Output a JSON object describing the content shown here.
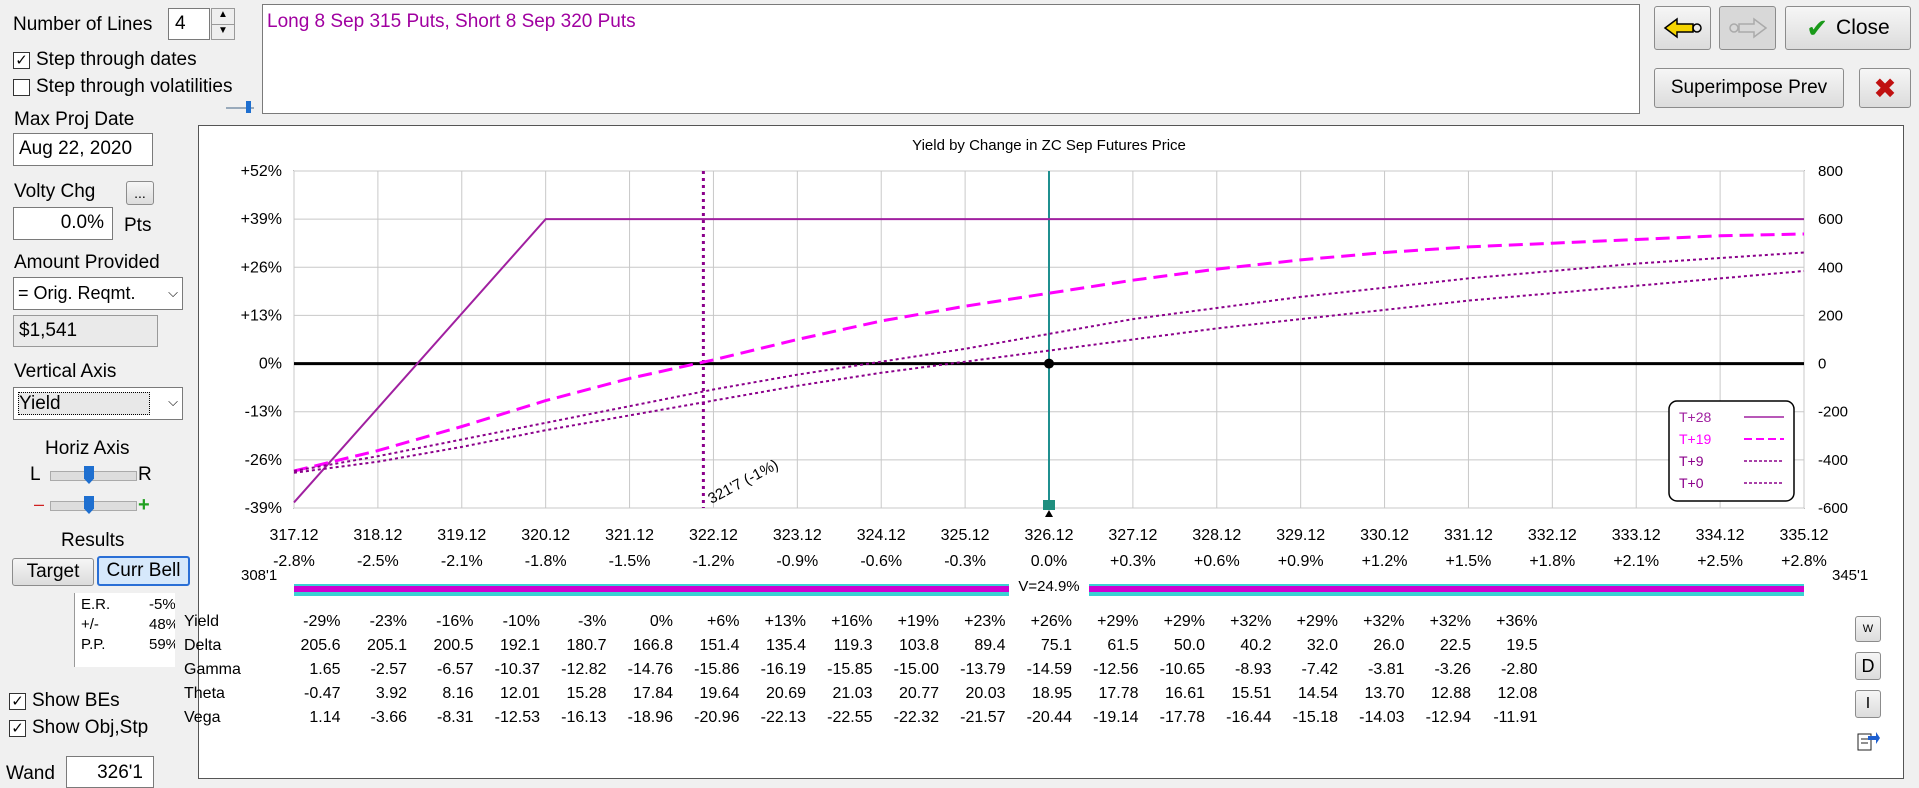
{
  "lines": {
    "label": "Number of Lines",
    "value": "4"
  },
  "step_dates": {
    "label": "Step through dates",
    "checked": true
  },
  "step_vols": {
    "label": "Step through volatilities",
    "checked": false
  },
  "max_proj": {
    "label": "Max Proj Date",
    "value": "Aug 22, 2020"
  },
  "volty": {
    "label": "Volty Chg",
    "value": "0.0%",
    "unit": "Pts",
    "ellipsis": "..."
  },
  "amount": {
    "label": "Amount Provided",
    "select": "= Orig. Reqmt.",
    "value": "$1,541"
  },
  "vaxis": {
    "label": "Vertical Axis",
    "select": "Yield"
  },
  "haxis": {
    "label": "Horiz Axis",
    "l": "L",
    "r": "R",
    "minus": "–",
    "plus": "+"
  },
  "results": {
    "label": "Results",
    "target": "Target",
    "currbell": "Curr Bell",
    "er_lbl": "E.R.",
    "er_val": "-5%",
    "pm_lbl": "+/-",
    "pm_val": "48%",
    "pp_lbl": "P.P.",
    "pp_val": "59%"
  },
  "show_bes": {
    "label": "Show BEs",
    "checked": true
  },
  "show_obj": {
    "label": "Show Obj,Stp",
    "checked": true
  },
  "wand": {
    "label": "Wand",
    "value": "326'1"
  },
  "description": "Long 8 Sep 315 Puts, Short 8 Sep 320 Puts",
  "buttons": {
    "close": "Close",
    "superimpose": "Superimpose Prev",
    "w": "W",
    "d": "D",
    "i": "I"
  },
  "chart_data": {
    "type": "line",
    "title": "Yield by Change in ZC Sep Futures Price",
    "x_ticks": [
      "317.12",
      "318.12",
      "319.12",
      "320.12",
      "321.12",
      "322.12",
      "323.12",
      "324.12",
      "325.12",
      "326.12",
      "327.12",
      "328.12",
      "329.12",
      "330.12",
      "331.12",
      "332.12",
      "333.12",
      "334.12",
      "335.12"
    ],
    "pct_ticks": [
      "-2.8%",
      "-2.5%",
      "-2.1%",
      "-1.8%",
      "-1.5%",
      "-1.2%",
      "-0.9%",
      "-0.6%",
      "-0.3%",
      "0.0%",
      "+0.3%",
      "+0.6%",
      "+0.9%",
      "+1.2%",
      "+1.5%",
      "+1.8%",
      "+2.1%",
      "+2.5%",
      "+2.8%"
    ],
    "x_range": [
      317.12,
      335.12
    ],
    "y_left_ticks": [
      "+52%",
      "+39%",
      "+26%",
      "+13%",
      "0%",
      "-13%",
      "-26%",
      "-39%"
    ],
    "y_left_values": [
      52,
      39,
      26,
      13,
      0,
      -13,
      -26,
      -39
    ],
    "y_right_ticks": [
      "800",
      "600",
      "400",
      "200",
      "0",
      "-200",
      "-400",
      "-600"
    ],
    "y_range": [
      -39,
      52
    ],
    "current_price": 326.12,
    "breakeven": {
      "x": 322.0,
      "label": "321'7 (-1%)"
    },
    "bell": {
      "left": "308'1",
      "right": "345'1",
      "center": "V=24.9%"
    },
    "series": [
      {
        "name": "T+28",
        "color": "#a020a0",
        "dash": "",
        "width": 2,
        "points": [
          [
            317.12,
            -37.5
          ],
          [
            320.12,
            39
          ],
          [
            335.12,
            39
          ]
        ]
      },
      {
        "name": "T+19",
        "color": "#ff00ff",
        "dash": "14,7",
        "width": 3,
        "points": [
          [
            317.12,
            -29
          ],
          [
            318.12,
            -23.5
          ],
          [
            319.12,
            -17
          ],
          [
            320.12,
            -10
          ],
          [
            321.12,
            -4
          ],
          [
            322.12,
            1
          ],
          [
            323.12,
            6.5
          ],
          [
            324.12,
            11.5
          ],
          [
            325.12,
            15.5
          ],
          [
            326.12,
            19
          ],
          [
            327.12,
            22.5
          ],
          [
            328.12,
            25.5
          ],
          [
            329.12,
            28
          ],
          [
            330.12,
            30
          ],
          [
            331.12,
            31.5
          ],
          [
            332.12,
            32.5
          ],
          [
            333.12,
            33.5
          ],
          [
            334.12,
            34.5
          ],
          [
            335.12,
            35
          ]
        ]
      },
      {
        "name": "T+9",
        "color": "#8b008b",
        "dash": "3,3",
        "width": 2,
        "points": [
          [
            317.12,
            -29
          ],
          [
            318.12,
            -25
          ],
          [
            319.12,
            -20.5
          ],
          [
            320.12,
            -16
          ],
          [
            321.12,
            -11.5
          ],
          [
            322.12,
            -7
          ],
          [
            323.12,
            -3
          ],
          [
            324.12,
            0.5
          ],
          [
            325.12,
            4
          ],
          [
            326.12,
            8
          ],
          [
            327.12,
            12
          ],
          [
            328.12,
            15
          ],
          [
            329.12,
            18
          ],
          [
            330.12,
            20.5
          ],
          [
            331.12,
            23
          ],
          [
            332.12,
            25
          ],
          [
            333.12,
            27
          ],
          [
            334.12,
            28.5
          ],
          [
            335.12,
            30
          ]
        ]
      },
      {
        "name": "T+0",
        "color": "#8b008b",
        "dash": "3,3",
        "width": 2,
        "points": [
          [
            317.12,
            -29.5
          ],
          [
            318.12,
            -26.5
          ],
          [
            319.12,
            -22.5
          ],
          [
            320.12,
            -18
          ],
          [
            321.12,
            -14
          ],
          [
            322.12,
            -10
          ],
          [
            323.12,
            -6
          ],
          [
            324.12,
            -2.5
          ],
          [
            325.12,
            0.5
          ],
          [
            326.12,
            3.5
          ],
          [
            327.12,
            6.5
          ],
          [
            328.12,
            9.5
          ],
          [
            329.12,
            12
          ],
          [
            330.12,
            14.5
          ],
          [
            331.12,
            17
          ],
          [
            332.12,
            19
          ],
          [
            333.12,
            21
          ],
          [
            334.12,
            23
          ],
          [
            335.12,
            25
          ]
        ]
      }
    ]
  },
  "greeks": {
    "rows": [
      {
        "name": "Yield",
        "vals": [
          "-29%",
          "-23%",
          "-16%",
          "-10%",
          "-3%",
          "0%",
          "+6%",
          "+13%",
          "+16%",
          "+19%",
          "+23%",
          "+26%",
          "+29%",
          "+29%",
          "+32%",
          "+29%",
          "+32%",
          "+32%",
          "+36%"
        ]
      },
      {
        "name": "Delta",
        "vals": [
          "205.6",
          "205.1",
          "200.5",
          "192.1",
          "180.7",
          "166.8",
          "151.4",
          "135.4",
          "119.3",
          "103.8",
          "89.4",
          "75.1",
          "61.5",
          "50.0",
          "40.2",
          "32.0",
          "26.0",
          "22.5",
          "19.5"
        ]
      },
      {
        "name": "Gamma",
        "vals": [
          "1.65",
          "-2.57",
          "-6.57",
          "-10.37",
          "-12.82",
          "-14.76",
          "-15.86",
          "-16.19",
          "-15.85",
          "-15.00",
          "-13.79",
          "-14.59",
          "-12.56",
          "-10.65",
          "-8.93",
          "-7.42",
          "-3.81",
          "-3.26",
          "-2.80"
        ]
      },
      {
        "name": "Theta",
        "vals": [
          "-0.47",
          "3.92",
          "8.16",
          "12.01",
          "15.28",
          "17.84",
          "19.64",
          "20.69",
          "21.03",
          "20.77",
          "20.03",
          "18.95",
          "17.78",
          "16.61",
          "15.51",
          "14.54",
          "13.70",
          "12.88",
          "12.08"
        ]
      },
      {
        "name": "Vega",
        "vals": [
          "1.14",
          "-3.66",
          "-8.31",
          "-12.53",
          "-16.13",
          "-18.96",
          "-20.96",
          "-22.13",
          "-22.55",
          "-22.32",
          "-21.57",
          "-20.44",
          "-19.14",
          "-17.78",
          "-16.44",
          "-15.18",
          "-14.03",
          "-12.94",
          "-11.91"
        ]
      }
    ]
  }
}
